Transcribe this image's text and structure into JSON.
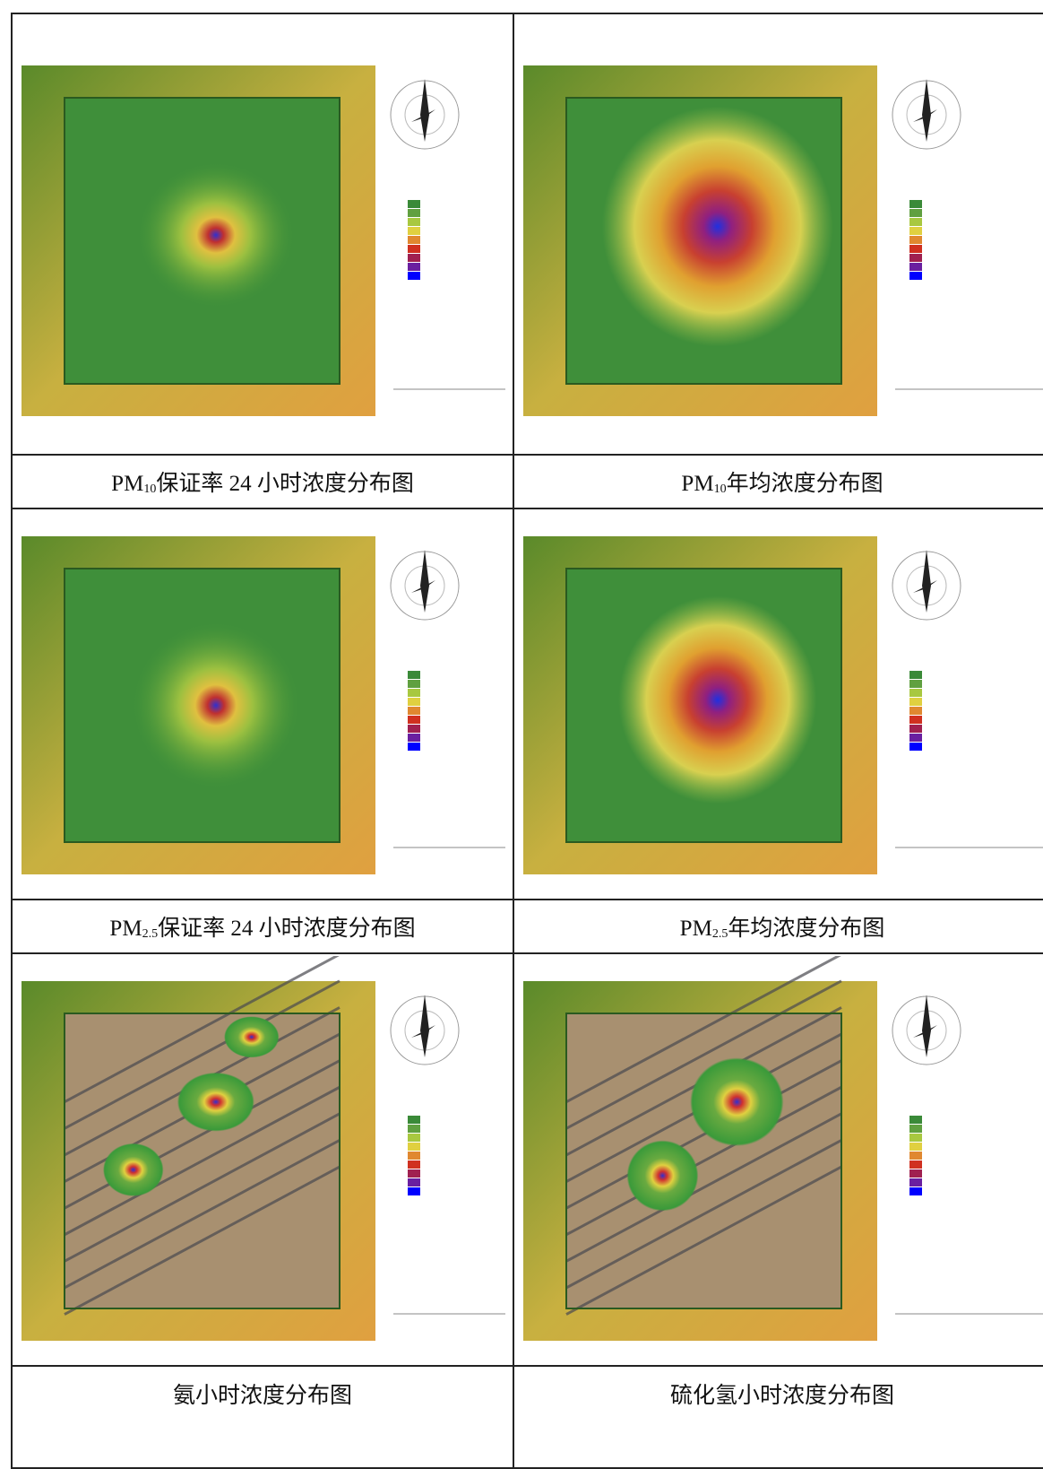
{
  "figures": [
    {
      "prefix": "PM",
      "sub": "10",
      "text": "保证率 24 小时浓度分布图"
    },
    {
      "prefix": "PM",
      "sub": "10",
      "text": "年均浓度分布图"
    },
    {
      "prefix": "PM",
      "sub": "2.5",
      "text": "保证率 24 小时浓度分布图"
    },
    {
      "prefix": "PM",
      "sub": "2.5",
      "text": "年均浓度分布图"
    },
    {
      "text": "氨小时浓度分布图"
    },
    {
      "text": "硫化氢小时浓度分布图"
    }
  ]
}
